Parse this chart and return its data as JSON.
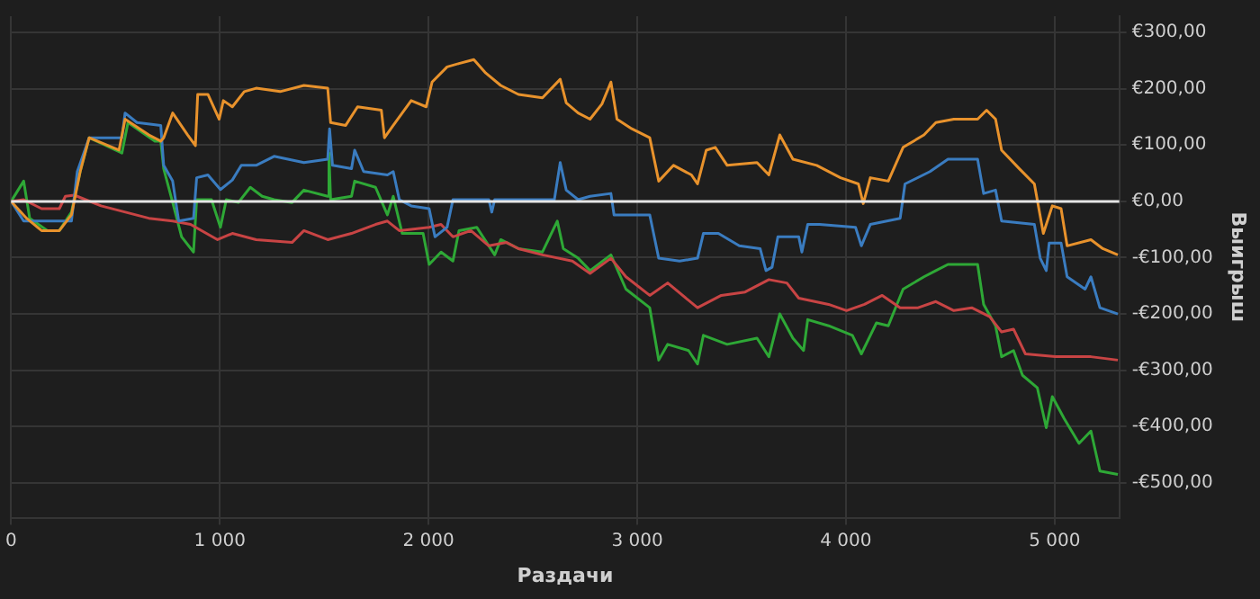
{
  "chart_data": {
    "type": "line",
    "xlabel": "Раздачи",
    "ylabel": "Выигрыш",
    "xlim": [
      0,
      5310
    ],
    "xticks": [
      0,
      {
        "value": 1000,
        "label": "1 000"
      },
      {
        "value": 2000,
        "label": "2 000"
      },
      {
        "value": 3000,
        "label": "3 000"
      },
      {
        "value": 4000,
        "label": "4 000"
      },
      {
        "value": 5000,
        "label": "5 000"
      }
    ],
    "ylim": [
      -562,
      329
    ],
    "yticks": [
      {
        "value": -500,
        "label": "-€500,00"
      },
      {
        "value": -400,
        "label": "-€400,00"
      },
      {
        "value": -300,
        "label": "-€300,00"
      },
      {
        "value": -200,
        "label": "-€200,00"
      },
      {
        "value": -100,
        "label": "-€100,00"
      },
      {
        "value": 0,
        "label": "€0,00"
      },
      {
        "value": 100,
        "label": "€100,00"
      },
      {
        "value": 200,
        "label": "€200,00"
      },
      {
        "value": 300,
        "label": "€300,00"
      }
    ],
    "grid": true,
    "legend": false,
    "marker": "none",
    "line_style": "solid",
    "ref_lines": [
      {
        "axis": "y",
        "value": 0,
        "color": "#e6e6e6"
      }
    ],
    "series": [
      {
        "color": "#e8922c",
        "x": [
          0,
          74,
          146,
          231,
          289,
          331,
          374,
          517,
          546,
          660,
          717,
          731,
          774,
          846,
          883,
          894,
          943,
          997,
          1017,
          1060,
          1117,
          1174,
          1289,
          1403,
          1517,
          1531,
          1603,
          1660,
          1774,
          1789,
          1831,
          1917,
          1989,
          2017,
          2089,
          2146,
          2217,
          2274,
          2346,
          2431,
          2546,
          2631,
          2660,
          2717,
          2774,
          2831,
          2874,
          2903,
          2974,
          3060,
          3103,
          3174,
          3260,
          3289,
          3331,
          3374,
          3431,
          3574,
          3631,
          3683,
          3746,
          3860,
          3974,
          4060,
          4083,
          4117,
          4203,
          4274,
          4374,
          4431,
          4517,
          4631,
          4674,
          4717,
          4746,
          4831,
          4903,
          4946,
          4989,
          5031,
          5060,
          5174,
          5231,
          5303
        ],
        "values": [
          0,
          -30,
          -52,
          -52,
          -24,
          53,
          113,
          91,
          146,
          118,
          107,
          113,
          157,
          118,
          99,
          190,
          190,
          146,
          179,
          168,
          195,
          201,
          195,
          206,
          201,
          140,
          135,
          168,
          162,
          113,
          135,
          179,
          168,
          212,
          239,
          245,
          252,
          228,
          206,
          190,
          184,
          217,
          175,
          157,
          146,
          173,
          212,
          146,
          129,
          113,
          36,
          64,
          47,
          31,
          91,
          96,
          64,
          69,
          47,
          118,
          75,
          64,
          42,
          31,
          -4,
          42,
          36,
          96,
          118,
          140,
          146,
          146,
          162,
          146,
          91,
          58,
          31,
          -57,
          -8,
          -13,
          -79,
          -68,
          -84,
          -95
        ]
      },
      {
        "color": "#3a7cc0",
        "x": [
          0,
          60,
          289,
          317,
          374,
          531,
          546,
          603,
          717,
          731,
          774,
          803,
          874,
          889,
          943,
          1003,
          1060,
          1103,
          1174,
          1260,
          1403,
          1517,
          1526,
          1540,
          1631,
          1646,
          1689,
          1803,
          1831,
          1860,
          1917,
          2003,
          2031,
          2089,
          2117,
          2289,
          2303,
          2317,
          2603,
          2631,
          2660,
          2717,
          2774,
          2874,
          2889,
          3060,
          3103,
          3203,
          3289,
          3317,
          3389,
          3489,
          3589,
          3617,
          3646,
          3674,
          3774,
          3789,
          3817,
          3874,
          4046,
          4074,
          4117,
          4260,
          4283,
          4403,
          4489,
          4631,
          4660,
          4717,
          4746,
          4903,
          4931,
          4960,
          4974,
          5031,
          5060,
          5146,
          5174,
          5217,
          5303
        ],
        "values": [
          0,
          -35,
          -35,
          53,
          113,
          113,
          157,
          140,
          135,
          64,
          36,
          -35,
          -30,
          42,
          47,
          21,
          38,
          64,
          64,
          80,
          69,
          75,
          129,
          64,
          58,
          91,
          53,
          47,
          53,
          3,
          -8,
          -13,
          -63,
          -46,
          3,
          3,
          -19,
          3,
          3,
          69,
          20,
          3,
          9,
          14,
          -24,
          -24,
          -101,
          -106,
          -101,
          -57,
          -57,
          -79,
          -84,
          -123,
          -117,
          -63,
          -63,
          -90,
          -41,
          -41,
          -46,
          -79,
          -41,
          -30,
          31,
          53,
          75,
          75,
          14,
          20,
          -35,
          -41,
          -101,
          -123,
          -74,
          -74,
          -134,
          -156,
          -134,
          -189,
          -200
        ]
      },
      {
        "color": "#c84444",
        "x": [
          0,
          60,
          146,
          231,
          260,
          303,
          431,
          660,
          774,
          860,
          989,
          1060,
          1174,
          1346,
          1403,
          1517,
          1631,
          1746,
          1803,
          1860,
          2003,
          2060,
          2117,
          2203,
          2289,
          2374,
          2431,
          2546,
          2689,
          2774,
          2874,
          2946,
          3060,
          3146,
          3289,
          3403,
          3517,
          3631,
          3717,
          3774,
          3917,
          4003,
          4089,
          4174,
          4260,
          4346,
          4431,
          4517,
          4603,
          4689,
          4746,
          4803,
          4860,
          5003,
          5174,
          5303
        ],
        "values": [
          0,
          3,
          -13,
          -13,
          9,
          11,
          -8,
          -30,
          -35,
          -41,
          -68,
          -57,
          -68,
          -73,
          -52,
          -68,
          -57,
          -41,
          -35,
          -52,
          -46,
          -41,
          -63,
          -52,
          -79,
          -73,
          -84,
          -95,
          -106,
          -128,
          -101,
          -134,
          -167,
          -145,
          -189,
          -167,
          -161,
          -139,
          -145,
          -172,
          -183,
          -194,
          -183,
          -167,
          -189,
          -189,
          -178,
          -194,
          -189,
          -205,
          -232,
          -227,
          -271,
          -276,
          -276,
          -282
        ]
      },
      {
        "color": "#2ea836",
        "x": [
          0,
          60,
          89,
          174,
          231,
          289,
          331,
          374,
          531,
          560,
          689,
          717,
          731,
          774,
          817,
          874,
          889,
          960,
          1003,
          1031,
          1089,
          1146,
          1203,
          1260,
          1346,
          1403,
          1517,
          1523,
          1531,
          1631,
          1646,
          1746,
          1803,
          1831,
          1874,
          1974,
          2003,
          2060,
          2117,
          2146,
          2231,
          2317,
          2346,
          2431,
          2546,
          2617,
          2646,
          2717,
          2774,
          2874,
          2946,
          3060,
          3103,
          3146,
          3246,
          3289,
          3317,
          3431,
          3574,
          3631,
          3683,
          3746,
          3797,
          3817,
          3917,
          4031,
          4074,
          4146,
          4203,
          4274,
          4374,
          4431,
          4489,
          4631,
          4660,
          4717,
          4746,
          4803,
          4846,
          4917,
          4960,
          4989,
          5046,
          5117,
          5174,
          5217,
          5303
        ],
        "values": [
          0,
          36,
          -30,
          -52,
          -52,
          -19,
          53,
          113,
          86,
          140,
          107,
          107,
          58,
          -2,
          -63,
          -90,
          3,
          3,
          -46,
          3,
          -2,
          25,
          9,
          3,
          -2,
          20,
          9,
          86,
          3,
          9,
          36,
          25,
          -24,
          9,
          -57,
          -57,
          -112,
          -90,
          -106,
          -52,
          -46,
          -95,
          -68,
          -84,
          -90,
          -35,
          -84,
          -101,
          -123,
          -95,
          -156,
          -189,
          -282,
          -254,
          -265,
          -289,
          -238,
          -254,
          -243,
          -276,
          -200,
          -243,
          -265,
          -210,
          -221,
          -238,
          -271,
          -216,
          -221,
          -156,
          -134,
          -123,
          -112,
          -112,
          -183,
          -221,
          -276,
          -265,
          -309,
          -331,
          -402,
          -347,
          -386,
          -430,
          -408,
          -479,
          -485
        ]
      }
    ]
  }
}
